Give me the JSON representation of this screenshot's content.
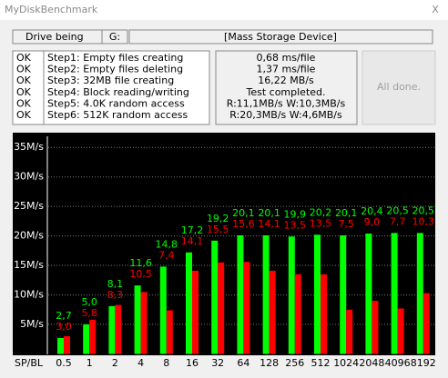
{
  "window": {
    "title": "MyDiskBenchmark",
    "close": "X"
  },
  "header": {
    "drive": "Drive being",
    "letter": "G:",
    "device": "[Mass Storage Device]"
  },
  "steps": [
    {
      "status": "OK",
      "name": "Step1: Empty files creating",
      "result": "0,68 ms/file"
    },
    {
      "status": "OK",
      "name": "Step2: Empty files deleting",
      "result": "1,37 ms/file"
    },
    {
      "status": "OK",
      "name": "Step3: 32MB file creating",
      "result": "16,22 MB/s"
    },
    {
      "status": "OK",
      "name": "Step4: Block reading/writing",
      "result": "Test completed."
    },
    {
      "status": "OK",
      "name": "Step5: 4.0K random access",
      "result": "R:11,1MB/s W:10,3MB/s"
    },
    {
      "status": "OK",
      "name": "Step6: 512K random access",
      "result": "R:20,3MB/s W:4,6MB/s"
    }
  ],
  "button": "All done.",
  "chart_data": {
    "type": "bar",
    "x_label": "SP/BL",
    "categories": [
      "0.5",
      "1",
      "2",
      "4",
      "8",
      "16",
      "32",
      "64",
      "128",
      "256",
      "512",
      "1024",
      "2048",
      "4096",
      "8192"
    ],
    "series": [
      {
        "color": "#00ff00",
        "values": [
          2.7,
          5.0,
          8.1,
          11.6,
          14.8,
          17.2,
          19.2,
          20.1,
          20.1,
          19.9,
          20.2,
          20.1,
          20.4,
          20.5,
          20.5
        ],
        "value_labels": [
          "2,7",
          "5,0",
          "8,1",
          "11,6",
          "14,8",
          "17,2",
          "19,2",
          "20,1",
          "20,1",
          "19,9",
          "20,2",
          "20,1",
          "20,4",
          "20,5",
          "20,5"
        ]
      },
      {
        "color": "#ff0000",
        "values": [
          3.0,
          5.8,
          8.3,
          10.5,
          7.4,
          14.1,
          15.5,
          15.6,
          14.1,
          13.5,
          13.5,
          7.5,
          9.0,
          7.7,
          10.3
        ],
        "value_labels": [
          "3,0",
          "5,8",
          "8,3",
          "10,5",
          "7,4",
          "14,1",
          "15,5",
          "15,6",
          "14,1",
          "13,5",
          "13,5",
          "7,5",
          "9,0",
          "7,7",
          "10,3"
        ]
      }
    ],
    "ylim": [
      0,
      37.5
    ],
    "yticks": [
      {
        "value": 5,
        "label": "5M/s"
      },
      {
        "value": 10,
        "label": "10M/s"
      },
      {
        "value": 15,
        "label": "15M/s"
      },
      {
        "value": 20,
        "label": "20M/s"
      },
      {
        "value": 25,
        "label": "25M/s"
      },
      {
        "value": 30,
        "label": "30M/s"
      },
      {
        "value": 35,
        "label": "35M/s"
      }
    ],
    "grid": true
  }
}
